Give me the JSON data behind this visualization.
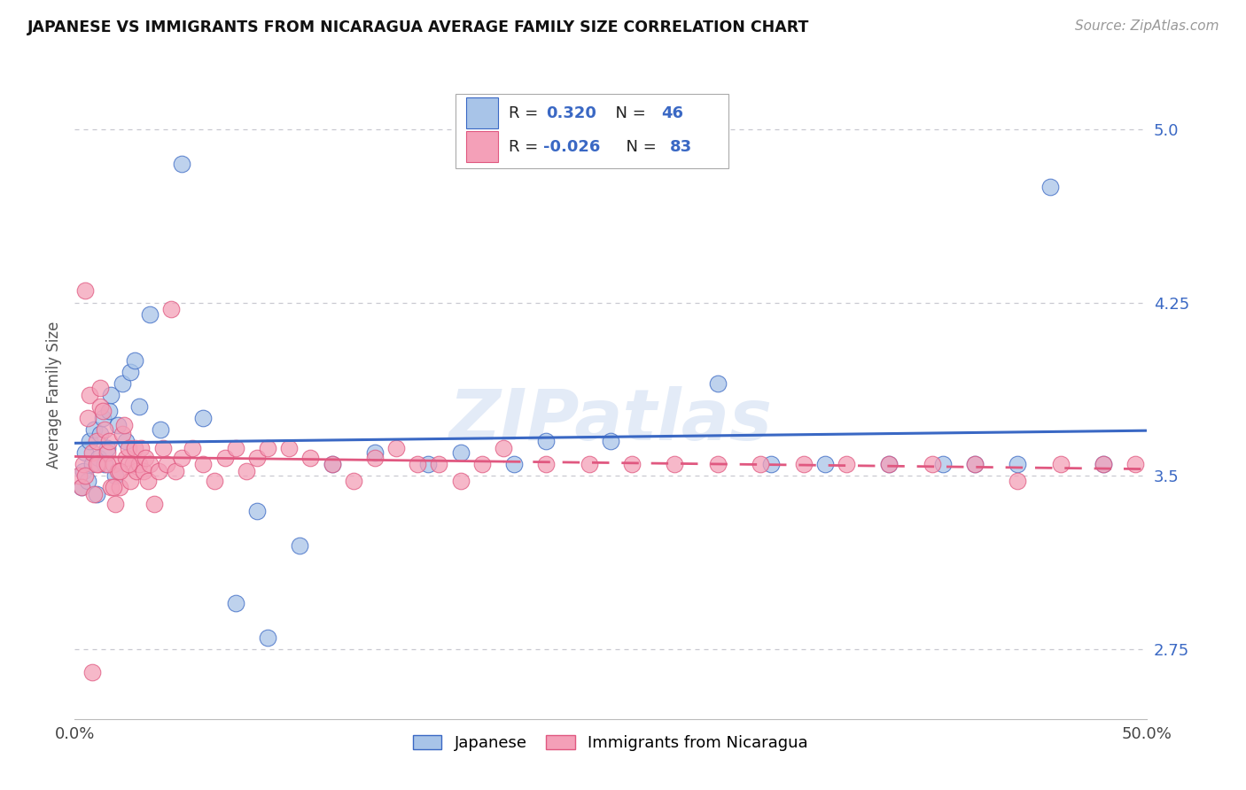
{
  "title": "JAPANESE VS IMMIGRANTS FROM NICARAGUA AVERAGE FAMILY SIZE CORRELATION CHART",
  "source": "Source: ZipAtlas.com",
  "ylabel": "Average Family Size",
  "yticks": [
    2.75,
    3.5,
    4.25,
    5.0
  ],
  "xlim": [
    0.0,
    50.0
  ],
  "ylim": [
    2.45,
    5.25
  ],
  "legend_labels": [
    "Japanese",
    "Immigrants from Nicaragua"
  ],
  "legend_R": [
    "R =  0.320",
    "R = -0.026"
  ],
  "legend_N": [
    "N = 46",
    "N = 83"
  ],
  "color_blue": "#a8c4e8",
  "color_pink": "#f4a0b8",
  "line_blue": "#3a68c4",
  "line_pink": "#e05880",
  "text_color_R": "#3a68c4",
  "text_color_N": "#222222",
  "jp_x": [
    0.3,
    0.4,
    0.5,
    0.6,
    0.7,
    0.8,
    0.9,
    1.0,
    1.1,
    1.2,
    1.3,
    1.4,
    1.5,
    1.6,
    1.7,
    1.9,
    2.0,
    2.2,
    2.4,
    2.6,
    2.8,
    3.0,
    3.5,
    4.0,
    5.0,
    6.0,
    7.5,
    8.5,
    9.0,
    10.5,
    12.0,
    14.0,
    16.5,
    18.0,
    20.5,
    22.0,
    25.0,
    30.0,
    32.5,
    35.0,
    38.0,
    40.5,
    42.0,
    44.0,
    45.5,
    48.0
  ],
  "jp_y": [
    3.45,
    3.52,
    3.6,
    3.48,
    3.65,
    3.55,
    3.7,
    3.42,
    3.58,
    3.68,
    3.75,
    3.55,
    3.62,
    3.78,
    3.85,
    3.5,
    3.72,
    3.9,
    3.65,
    3.95,
    4.0,
    3.8,
    4.2,
    3.7,
    4.85,
    3.75,
    2.95,
    3.35,
    2.8,
    3.2,
    3.55,
    3.6,
    3.55,
    3.6,
    3.55,
    3.65,
    3.65,
    3.9,
    3.55,
    3.55,
    3.55,
    3.55,
    3.55,
    3.55,
    4.75,
    3.55
  ],
  "nic_x": [
    0.2,
    0.3,
    0.4,
    0.5,
    0.6,
    0.7,
    0.8,
    0.9,
    1.0,
    1.1,
    1.2,
    1.3,
    1.4,
    1.5,
    1.6,
    1.7,
    1.8,
    1.9,
    2.0,
    2.1,
    2.2,
    2.3,
    2.4,
    2.5,
    2.6,
    2.7,
    2.8,
    2.9,
    3.0,
    3.1,
    3.2,
    3.3,
    3.4,
    3.5,
    3.7,
    3.9,
    4.1,
    4.3,
    4.5,
    4.7,
    5.0,
    5.5,
    6.0,
    6.5,
    7.0,
    7.5,
    8.0,
    8.5,
    9.0,
    10.0,
    11.0,
    12.0,
    13.0,
    14.0,
    15.0,
    16.0,
    17.0,
    18.0,
    19.0,
    20.0,
    22.0,
    24.0,
    26.0,
    28.0,
    30.0,
    32.0,
    34.0,
    36.0,
    38.0,
    40.0,
    42.0,
    44.0,
    46.0,
    48.0,
    49.5,
    0.5,
    0.8,
    1.0,
    1.2,
    1.5,
    1.8,
    2.1,
    2.5
  ],
  "nic_y": [
    3.5,
    3.45,
    3.55,
    4.3,
    3.75,
    3.85,
    3.6,
    3.42,
    3.65,
    3.55,
    3.8,
    3.78,
    3.7,
    3.6,
    3.65,
    3.45,
    3.55,
    3.38,
    3.52,
    3.45,
    3.68,
    3.72,
    3.58,
    3.62,
    3.48,
    3.55,
    3.62,
    3.52,
    3.55,
    3.62,
    3.52,
    3.58,
    3.48,
    3.55,
    3.38,
    3.52,
    3.62,
    3.55,
    4.22,
    3.52,
    3.58,
    3.62,
    3.55,
    3.48,
    3.58,
    3.62,
    3.52,
    3.58,
    3.62,
    3.62,
    3.58,
    3.55,
    3.48,
    3.58,
    3.62,
    3.55,
    3.55,
    3.48,
    3.55,
    3.62,
    3.55,
    3.55,
    3.55,
    3.55,
    3.55,
    3.55,
    3.55,
    3.55,
    3.55,
    3.55,
    3.55,
    3.48,
    3.55,
    3.55,
    3.55,
    3.5,
    2.65,
    3.55,
    3.88,
    3.55,
    3.45,
    3.52,
    3.55
  ],
  "grid_color": "#c8c8d0",
  "spine_color": "#bbbbbb"
}
